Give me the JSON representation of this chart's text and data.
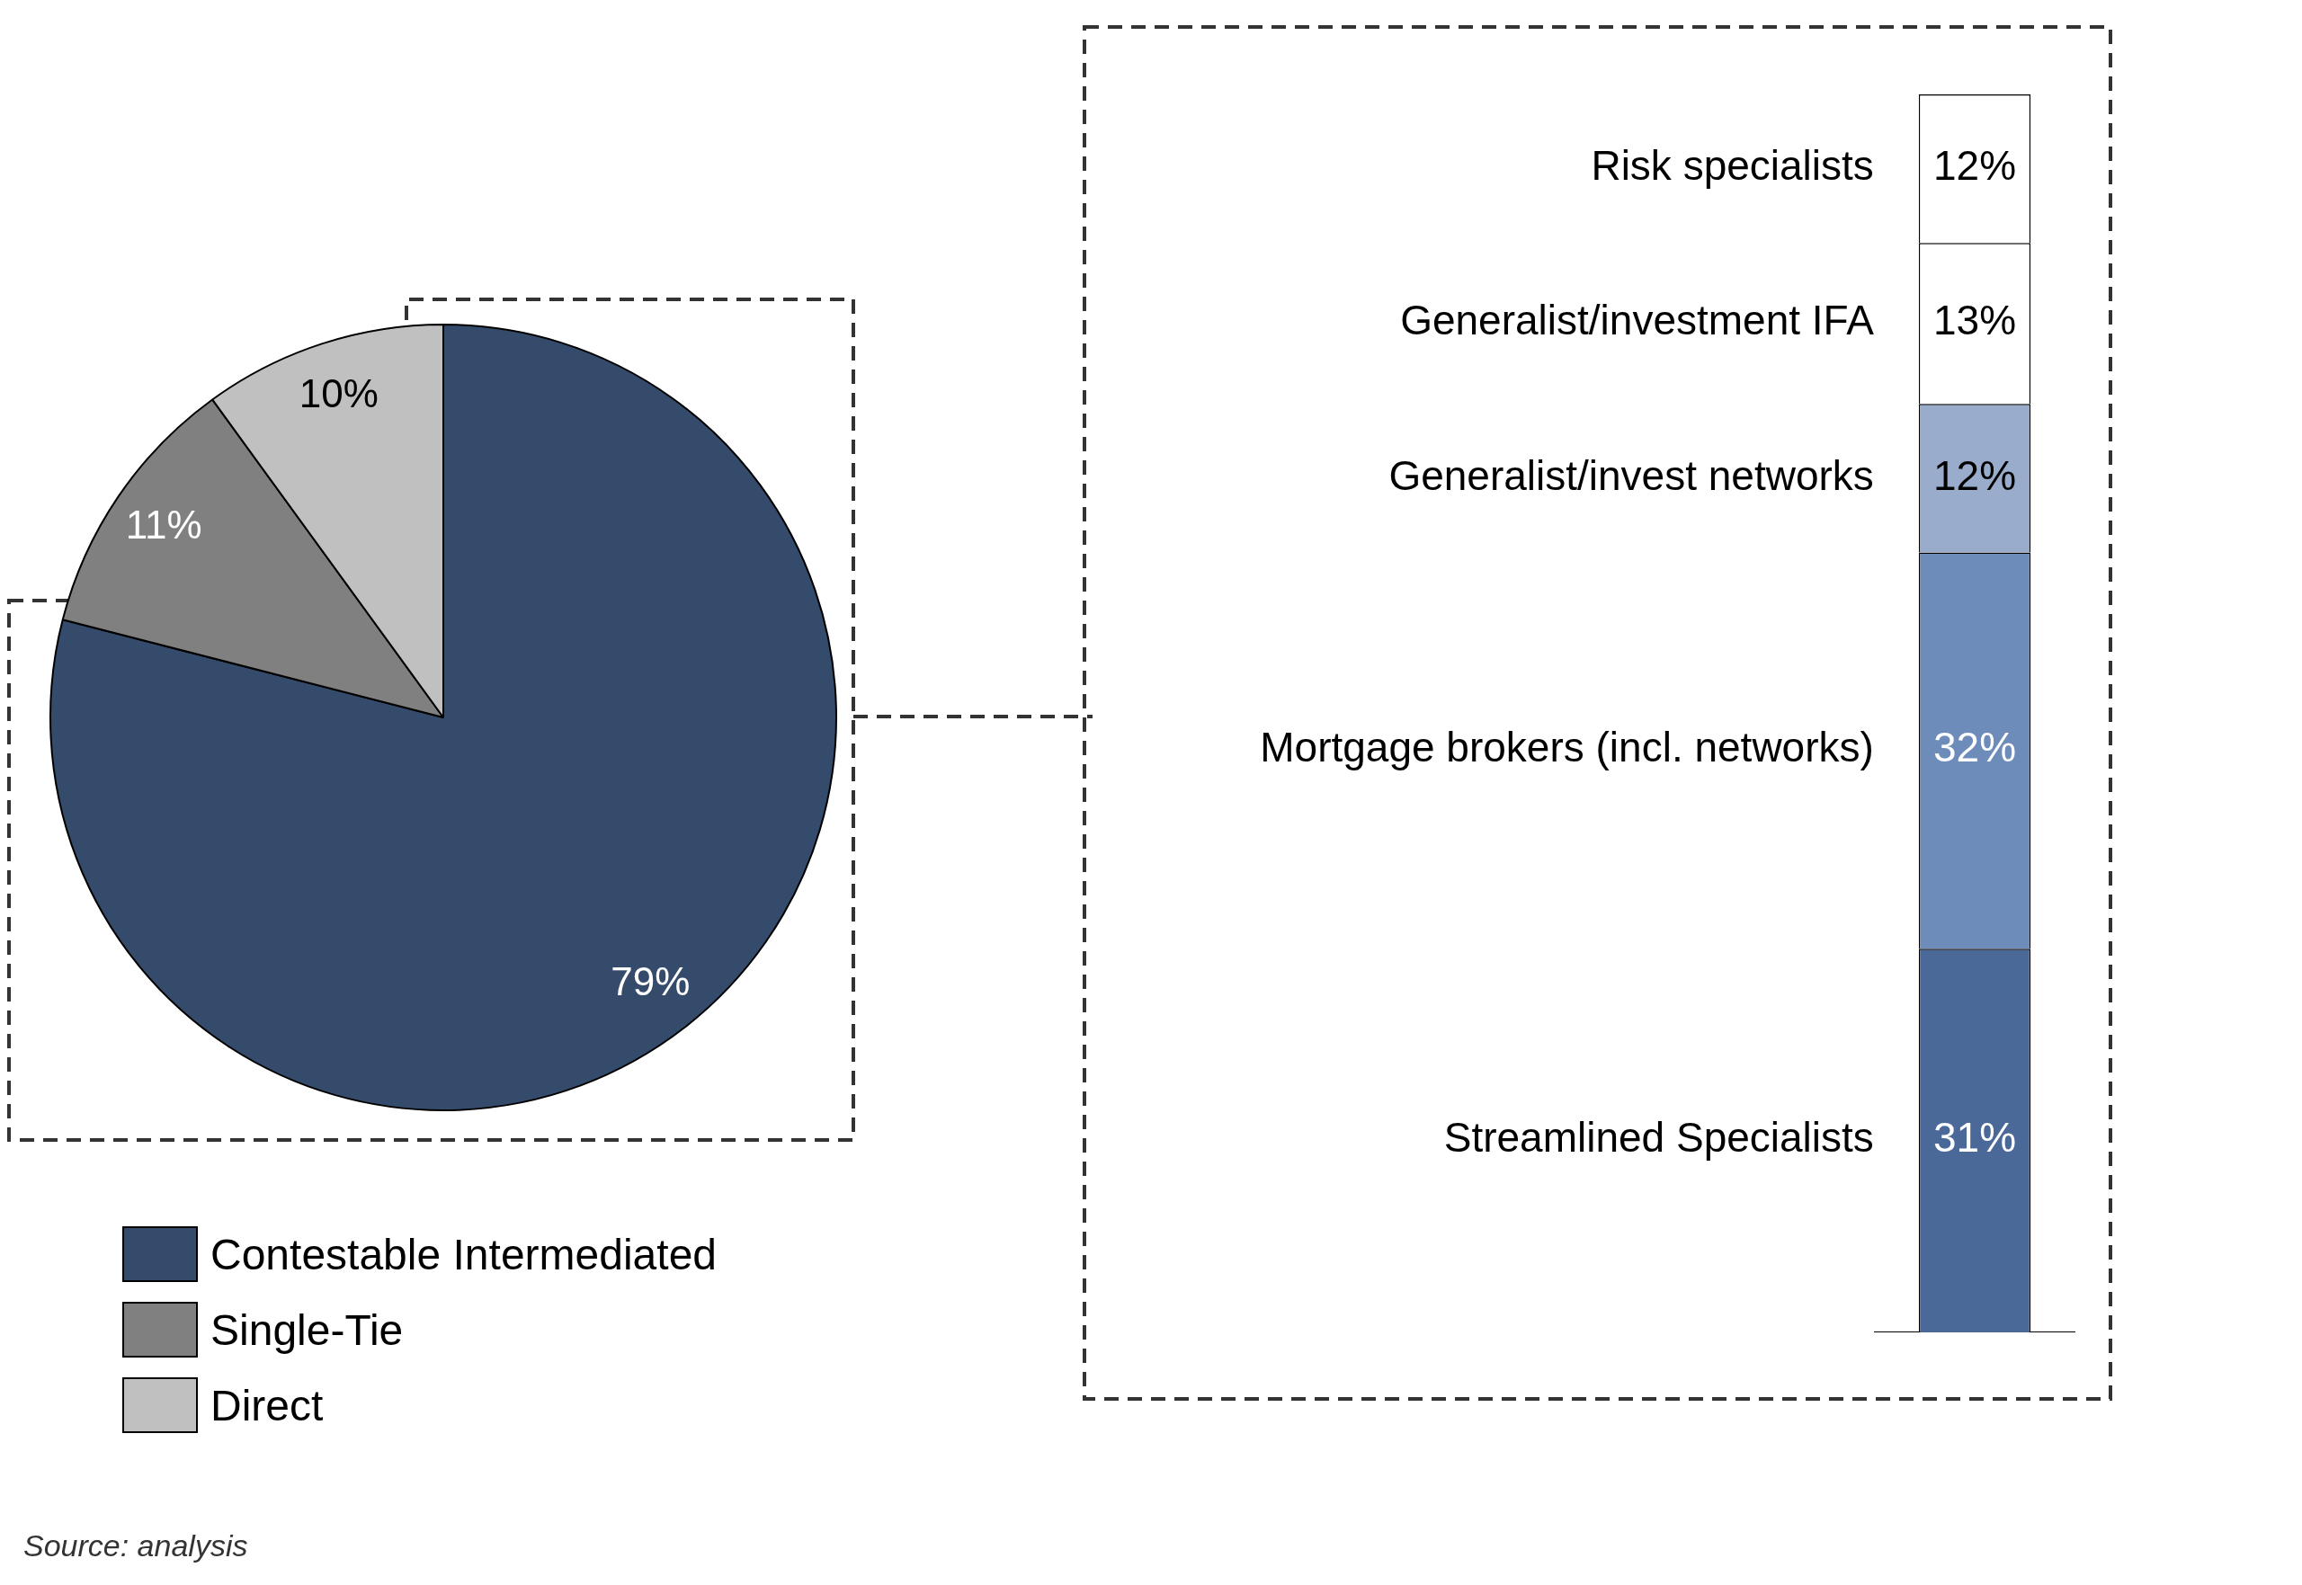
{
  "chart_data": [
    {
      "type": "pie",
      "categories": [
        "Contestable Intermediated",
        "Single-Tie",
        "Direct"
      ],
      "values": [
        79,
        11,
        10
      ],
      "colors": [
        "#354b6b",
        "#808080",
        "#c0c0c0"
      ],
      "value_labels": [
        "79%",
        "11%",
        "10%"
      ],
      "legend": "bottom left",
      "annotations": [
        "Source: analysis"
      ]
    },
    {
      "type": "bar",
      "stacked": true,
      "categories": [
        null
      ],
      "ylim": [
        0,
        100
      ],
      "tick_labels": false,
      "series": [
        {
          "name": "Streamlined Specialists",
          "color": "#4a6898",
          "values": [
            31
          ],
          "value_labels": [
            "31%"
          ]
        },
        {
          "name": "Mortgage brokers (incl. networks)",
          "color": "#6e8cba",
          "values": [
            32
          ],
          "value_labels": [
            "32%"
          ]
        },
        {
          "name": "Generalist/invest networks",
          "color": "#9aaccb",
          "values": [
            12
          ],
          "value_labels": [
            "12%"
          ]
        },
        {
          "name": "Generalist/investment IFA",
          "color": "#ffffff",
          "values": [
            13
          ],
          "value_labels": [
            "13%"
          ]
        },
        {
          "name": "Risk specialists",
          "color": "#ffffff",
          "values": [
            12
          ],
          "value_labels": [
            "12%"
          ]
        }
      ]
    }
  ]
}
